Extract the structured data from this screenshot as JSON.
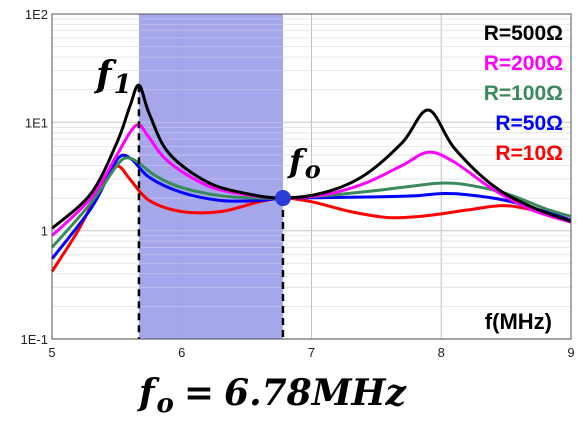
{
  "chart_data": {
    "type": "line",
    "xlabel": "f(MHz)",
    "xlim": [
      5,
      9
    ],
    "ylim": [
      0.1,
      100
    ],
    "y_scale": "log",
    "x_ticks": [
      "5",
      "6",
      "7",
      "8",
      "9"
    ],
    "y_ticks": [
      "1E-1",
      "1",
      "1E1",
      "1E2"
    ],
    "grid": true,
    "legend_position": "top-right",
    "shaded_region": [
      5.67,
      6.78
    ],
    "shade_color": "#9c9ce8",
    "points": [
      {
        "label": "f1",
        "x": 5.67,
        "y": 22
      },
      {
        "label": "fo",
        "x": 6.78,
        "y": 2.0
      }
    ],
    "caption": "fo = 6.78MHz",
    "series": [
      {
        "name": "R=500Ω",
        "color": "#000000",
        "x": [
          5.0,
          5.3,
          5.5,
          5.6,
          5.67,
          5.75,
          5.9,
          6.2,
          6.5,
          6.78,
          7.1,
          7.4,
          7.7,
          7.9,
          8.1,
          8.4,
          8.7,
          9.0
        ],
        "y": [
          1.05,
          2.2,
          6.5,
          14,
          22,
          12,
          5.2,
          2.8,
          2.2,
          2.0,
          2.25,
          3.2,
          6.5,
          13,
          5.8,
          2.6,
          1.65,
          1.22
        ]
      },
      {
        "name": "R=200Ω",
        "color": "#ff00ff",
        "x": [
          5.0,
          5.3,
          5.5,
          5.6,
          5.67,
          5.75,
          5.9,
          6.2,
          6.5,
          6.78,
          7.1,
          7.4,
          7.7,
          7.9,
          8.1,
          8.4,
          8.7,
          9.0
        ],
        "y": [
          0.9,
          2.0,
          5.0,
          8.0,
          9.5,
          7.2,
          4.3,
          2.6,
          2.15,
          2.0,
          2.15,
          2.7,
          4.0,
          5.3,
          4.3,
          2.4,
          1.55,
          1.2
        ]
      },
      {
        "name": "R=100Ω",
        "color": "#3a8a5c",
        "x": [
          5.0,
          5.3,
          5.5,
          5.58,
          5.67,
          5.8,
          6.0,
          6.3,
          6.6,
          6.78,
          7.1,
          7.5,
          7.8,
          8.0,
          8.2,
          8.5,
          8.8,
          9.0
        ],
        "y": [
          0.7,
          1.8,
          4.0,
          4.7,
          4.2,
          3.2,
          2.5,
          2.1,
          2.0,
          2.0,
          2.1,
          2.35,
          2.6,
          2.75,
          2.65,
          2.2,
          1.6,
          1.35
        ]
      },
      {
        "name": "R=50Ω",
        "color": "#0000ff",
        "x": [
          5.0,
          5.3,
          5.45,
          5.53,
          5.62,
          5.75,
          6.0,
          6.3,
          6.6,
          6.78,
          7.1,
          7.5,
          7.8,
          8.0,
          8.2,
          8.5,
          8.8,
          9.0
        ],
        "y": [
          0.55,
          1.6,
          3.5,
          4.9,
          4.5,
          3.1,
          2.25,
          1.9,
          1.9,
          2.0,
          2.02,
          2.05,
          2.1,
          2.2,
          2.15,
          1.9,
          1.5,
          1.25
        ]
      },
      {
        "name": "R=10Ω",
        "color": "#ff0000",
        "x": [
          5.0,
          5.2,
          5.35,
          5.45,
          5.52,
          5.6,
          5.75,
          6.0,
          6.3,
          6.6,
          6.78,
          7.0,
          7.3,
          7.6,
          7.9,
          8.2,
          8.5,
          8.8,
          9.0
        ],
        "y": [
          0.42,
          1.0,
          2.2,
          3.6,
          3.9,
          3.0,
          1.9,
          1.5,
          1.5,
          1.85,
          2.0,
          1.85,
          1.5,
          1.32,
          1.38,
          1.55,
          1.7,
          1.45,
          1.2
        ]
      }
    ]
  }
}
